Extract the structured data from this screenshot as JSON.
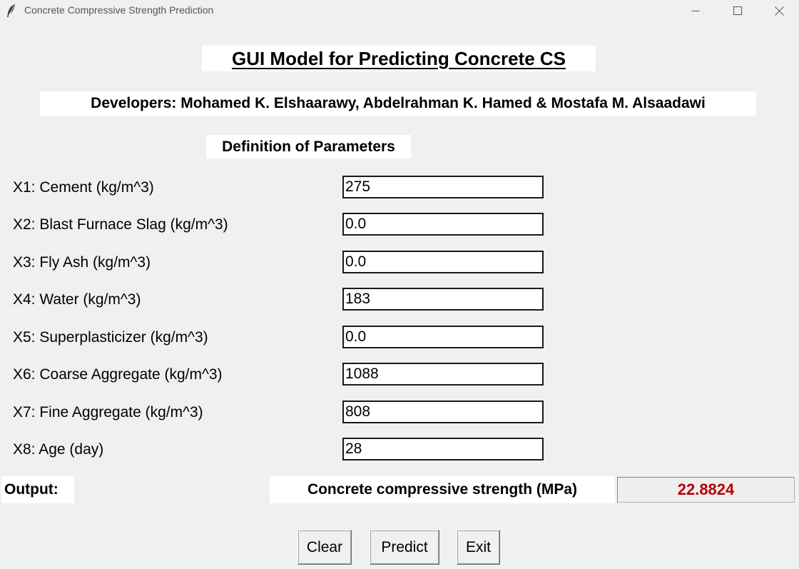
{
  "window": {
    "title": "Concrete Compressive Strength Prediction",
    "icon": "feather-icon"
  },
  "header": {
    "title": "GUI Model for Predicting Concrete CS",
    "developers": "Developers: Mohamed K. Elshaarawy, Abdelrahman K. Hamed & Mostafa M. Alsaadawi",
    "section_title": "Definition of Parameters"
  },
  "params": [
    {
      "label": "X1: Cement (kg/m^3)",
      "value": "275"
    },
    {
      "label": "X2: Blast Furnace Slag (kg/m^3)",
      "value": "0.0"
    },
    {
      "label": "X3: Fly Ash (kg/m^3)",
      "value": "0.0"
    },
    {
      "label": "X4: Water (kg/m^3)",
      "value": "183"
    },
    {
      "label": "X5: Superplasticizer (kg/m^3)",
      "value": "0.0"
    },
    {
      "label": "X6: Coarse Aggregate (kg/m^3)",
      "value": "1088"
    },
    {
      "label": "X7: Fine Aggregate (kg/m^3)",
      "value": "808"
    },
    {
      "label": "X8: Age (day)",
      "value": "28"
    }
  ],
  "output": {
    "label": "Output:",
    "result_label": "Concrete compressive strength (MPa)",
    "result_value": "22.8824",
    "result_color": "#b50000"
  },
  "buttons": {
    "clear": "Clear",
    "predict": "Predict",
    "exit": "Exit"
  }
}
